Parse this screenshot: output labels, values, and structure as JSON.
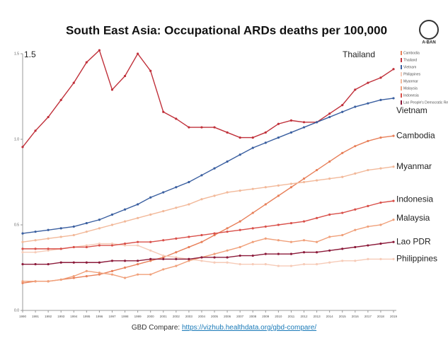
{
  "chart_data": {
    "type": "line",
    "title": "South East Asia: Occupational ARDs deaths per 100,000",
    "annotation": "1.5",
    "logo_text": "A-BAN",
    "source_prefix": "GBD Compare:",
    "source_link": "https://vizhub.healthdata.org/gbd-compare/",
    "x": [
      1990,
      1991,
      1992,
      1993,
      1994,
      1995,
      1996,
      1997,
      1998,
      1999,
      2000,
      2001,
      2002,
      2003,
      2004,
      2005,
      2006,
      2007,
      2008,
      2009,
      2010,
      2011,
      2012,
      2013,
      2014,
      2015,
      2016,
      2017,
      2018,
      2019
    ],
    "xlim": [
      1990,
      2019
    ],
    "xticks": [
      1990,
      1991,
      1992,
      1993,
      1994,
      1995,
      1996,
      1997,
      1998,
      1999,
      2000,
      2001,
      2002,
      2003,
      2004,
      2005,
      2006,
      2007,
      2008,
      2009,
      2010,
      2011,
      2012,
      2013,
      2014,
      2015,
      2016,
      2017,
      2018,
      2019
    ],
    "ylim": [
      0,
      1.5
    ],
    "yticks": [
      {
        "value": 0,
        "label": "0.0"
      },
      0.5,
      {
        "value": 1,
        "label": "1.0"
      },
      1.5
    ],
    "legend": "top-right",
    "series": [
      {
        "name": "Cambodia",
        "label": "Cambodia",
        "color": "#e8805a",
        "values": [
          0.16,
          0.17,
          0.17,
          0.18,
          0.19,
          0.2,
          0.21,
          0.23,
          0.25,
          0.27,
          0.29,
          0.31,
          0.34,
          0.37,
          0.4,
          0.44,
          0.48,
          0.52,
          0.57,
          0.62,
          0.67,
          0.72,
          0.77,
          0.82,
          0.87,
          0.92,
          0.96,
          0.99,
          1.01,
          1.02
        ]
      },
      {
        "name": "Thailand",
        "label": "Thailand",
        "color": "#c0303a",
        "values": [
          0.955,
          1.05,
          1.13,
          1.23,
          1.33,
          1.45,
          1.52,
          1.29,
          1.37,
          1.5,
          1.4,
          1.16,
          1.12,
          1.07,
          1.07,
          1.07,
          1.04,
          1.01,
          1.01,
          1.04,
          1.09,
          1.11,
          1.1,
          1.1,
          1.15,
          1.2,
          1.29,
          1.33,
          1.36,
          1.41
        ]
      },
      {
        "name": "Vietnam",
        "label": "Vietnam",
        "color": "#3a5fa0",
        "values": [
          0.45,
          0.46,
          0.47,
          0.48,
          0.49,
          0.51,
          0.53,
          0.56,
          0.59,
          0.62,
          0.66,
          0.69,
          0.72,
          0.75,
          0.79,
          0.83,
          0.87,
          0.91,
          0.95,
          0.98,
          1.01,
          1.04,
          1.07,
          1.1,
          1.13,
          1.16,
          1.19,
          1.21,
          1.23,
          1.24
        ]
      },
      {
        "name": "Philippines",
        "label": "Philippines",
        "color": "#f6cbb8",
        "values": [
          0.34,
          0.34,
          0.35,
          0.36,
          0.37,
          0.38,
          0.39,
          0.39,
          0.38,
          0.38,
          0.35,
          0.32,
          0.31,
          0.3,
          0.29,
          0.28,
          0.28,
          0.27,
          0.27,
          0.27,
          0.26,
          0.26,
          0.27,
          0.27,
          0.28,
          0.29,
          0.29,
          0.3,
          0.3,
          0.3
        ]
      },
      {
        "name": "Myanmar",
        "label": "Myanmar",
        "color": "#f2b99a",
        "values": [
          0.4,
          0.41,
          0.42,
          0.43,
          0.44,
          0.46,
          0.48,
          0.5,
          0.52,
          0.54,
          0.56,
          0.58,
          0.6,
          0.62,
          0.65,
          0.67,
          0.69,
          0.7,
          0.71,
          0.72,
          0.73,
          0.74,
          0.75,
          0.76,
          0.77,
          0.78,
          0.8,
          0.82,
          0.83,
          0.84
        ]
      },
      {
        "name": "Malaysia",
        "label": "Malaysia",
        "color": "#f0a07a",
        "values": [
          0.17,
          0.17,
          0.17,
          0.18,
          0.2,
          0.23,
          0.22,
          0.21,
          0.19,
          0.21,
          0.21,
          0.24,
          0.26,
          0.29,
          0.31,
          0.33,
          0.35,
          0.37,
          0.4,
          0.42,
          0.41,
          0.4,
          0.41,
          0.4,
          0.43,
          0.44,
          0.47,
          0.49,
          0.5,
          0.53
        ]
      },
      {
        "name": "Indonesia",
        "label": "Indonesia",
        "color": "#d9504a",
        "values": [
          0.36,
          0.36,
          0.36,
          0.36,
          0.37,
          0.37,
          0.38,
          0.38,
          0.39,
          0.4,
          0.4,
          0.41,
          0.42,
          0.43,
          0.44,
          0.45,
          0.46,
          0.47,
          0.48,
          0.49,
          0.5,
          0.51,
          0.52,
          0.54,
          0.56,
          0.57,
          0.59,
          0.61,
          0.63,
          0.64
        ]
      },
      {
        "name": "Lao People's Democratic Republic",
        "label": "Lao PDR",
        "color": "#8b1a3a",
        "values": [
          0.27,
          0.27,
          0.27,
          0.28,
          0.28,
          0.28,
          0.28,
          0.29,
          0.29,
          0.29,
          0.3,
          0.3,
          0.3,
          0.3,
          0.31,
          0.31,
          0.31,
          0.32,
          0.32,
          0.33,
          0.33,
          0.33,
          0.34,
          0.34,
          0.35,
          0.36,
          0.37,
          0.38,
          0.39,
          0.4
        ]
      }
    ]
  }
}
